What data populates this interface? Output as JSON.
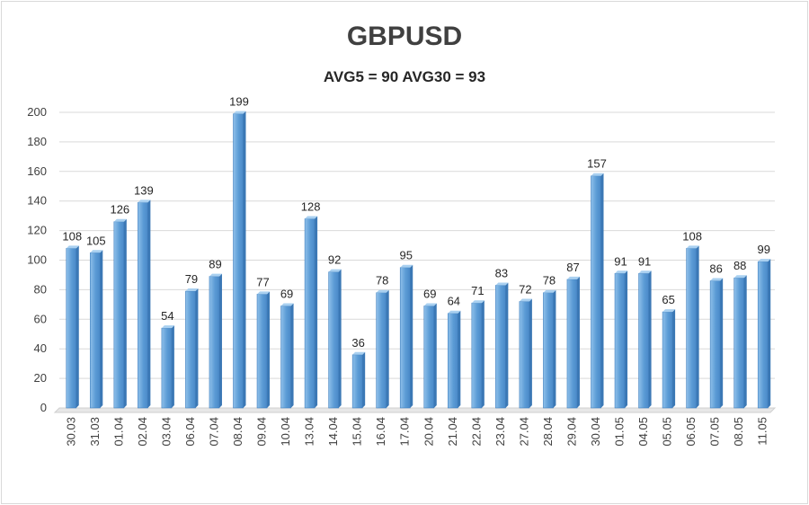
{
  "chart_data": {
    "type": "bar",
    "title": "GBPUSD",
    "subtitle": "AVG5 = 90 AVG30 = 93",
    "categories": [
      "30.03",
      "31.03",
      "01.04",
      "02.04",
      "03.04",
      "06.04",
      "07.04",
      "08.04",
      "09.04",
      "10.04",
      "13.04",
      "14.04",
      "15.04",
      "16.04",
      "17.04",
      "20.04",
      "21.04",
      "22.04",
      "23.04",
      "27.04",
      "28.04",
      "29.04",
      "30.04",
      "01.05",
      "04.05",
      "05.05",
      "06.05",
      "07.05",
      "08.05",
      "11.05"
    ],
    "values": [
      108,
      105,
      126,
      139,
      54,
      79,
      89,
      199,
      77,
      69,
      128,
      92,
      36,
      78,
      95,
      69,
      64,
      71,
      83,
      72,
      78,
      87,
      157,
      91,
      91,
      65,
      108,
      86,
      88,
      99
    ],
    "ylim": [
      0,
      200
    ],
    "yticks": [
      0,
      20,
      40,
      60,
      80,
      100,
      120,
      140,
      160,
      180,
      200
    ],
    "grid": true,
    "colors": {
      "bar": "#5b9bd5",
      "bar_dark": "#3b78b5",
      "grid": "#d9d9d9",
      "text": "#404040"
    }
  }
}
